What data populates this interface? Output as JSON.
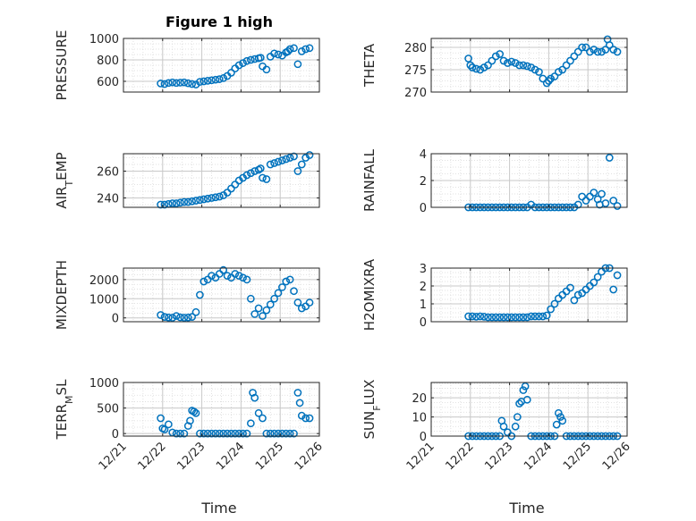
{
  "figure": {
    "title": "Figure 1 high",
    "xlabel": "Time"
  },
  "colors": {
    "marker": "#0072bd",
    "axis": "#262626",
    "grid": "#d9d9d9",
    "background": "#ffffff"
  },
  "x_tick_labels": [
    "12/21",
    "12/22",
    "12/23",
    "12/24",
    "12/25",
    "12/26"
  ],
  "chart_data": [
    {
      "type": "scatter",
      "ylabel": "PRESSURE",
      "ylim": [
        500,
        1000
      ],
      "yticks": [
        600,
        800,
        1000
      ],
      "grid": "on",
      "x": [
        21.95,
        22.05,
        22.15,
        22.25,
        22.35,
        22.45,
        22.55,
        22.65,
        22.75,
        22.85,
        22.95,
        23.05,
        23.15,
        23.25,
        23.35,
        23.45,
        23.55,
        23.65,
        23.75,
        23.85,
        23.95,
        24.05,
        24.15,
        24.25,
        24.35,
        24.45,
        24.5,
        24.55,
        24.65,
        24.75,
        24.85,
        24.95,
        25.05,
        25.15,
        25.2,
        25.25,
        25.35,
        25.45,
        25.55,
        25.65,
        25.75
      ],
      "y": [
        580,
        575,
        585,
        590,
        585,
        588,
        590,
        582,
        575,
        570,
        595,
        600,
        605,
        610,
        615,
        620,
        630,
        650,
        680,
        720,
        750,
        770,
        790,
        800,
        808,
        815,
        820,
        740,
        710,
        830,
        860,
        850,
        840,
        870,
        880,
        900,
        910,
        760,
        880,
        900,
        910
      ]
    },
    {
      "type": "scatter",
      "ylabel": "THETA",
      "ylim": [
        270,
        282
      ],
      "yticks": [
        270,
        275,
        280
      ],
      "grid": "on",
      "x": [
        21.95,
        22.0,
        22.05,
        22.15,
        22.25,
        22.35,
        22.45,
        22.55,
        22.65,
        22.75,
        22.85,
        22.95,
        23.05,
        23.15,
        23.25,
        23.35,
        23.45,
        23.55,
        23.65,
        23.75,
        23.85,
        23.95,
        24.0,
        24.05,
        24.15,
        24.25,
        24.35,
        24.45,
        24.55,
        24.65,
        24.75,
        24.85,
        24.95,
        25.05,
        25.15,
        25.25,
        25.35,
        25.45,
        25.5,
        25.55,
        25.65,
        25.75
      ],
      "y": [
        277.5,
        276,
        275.5,
        275.2,
        275,
        275.5,
        276,
        277,
        278,
        278.5,
        277,
        276.5,
        276.8,
        276.5,
        276,
        276,
        275.8,
        275.5,
        275,
        274.5,
        273,
        272,
        272.5,
        273,
        273.5,
        274.5,
        275,
        276,
        277,
        278,
        279,
        280,
        280,
        279,
        279.5,
        279,
        279,
        279.5,
        281.8,
        280.5,
        279.5,
        279
      ]
    },
    {
      "type": "scatter",
      "ylabel": "AIR_TEMP",
      "ylim": [
        233,
        273
      ],
      "yticks": [
        240,
        260
      ],
      "grid": "on",
      "x": [
        21.95,
        22.05,
        22.15,
        22.25,
        22.35,
        22.45,
        22.55,
        22.65,
        22.75,
        22.85,
        22.95,
        23.05,
        23.15,
        23.25,
        23.35,
        23.45,
        23.55,
        23.65,
        23.75,
        23.85,
        23.95,
        24.05,
        24.15,
        24.25,
        24.35,
        24.45,
        24.5,
        24.55,
        24.65,
        24.75,
        24.85,
        24.95,
        25.05,
        25.15,
        25.25,
        25.35,
        25.45,
        25.55,
        25.65,
        25.75
      ],
      "y": [
        235,
        235,
        235.5,
        236,
        236,
        236.5,
        237,
        237,
        237.5,
        238,
        238.5,
        239,
        239.5,
        240,
        240.5,
        241,
        242,
        244,
        247,
        250,
        253,
        255,
        257,
        258.5,
        260,
        261,
        262,
        255,
        254,
        265,
        266,
        267,
        268,
        269,
        270,
        271,
        260,
        265,
        270,
        272
      ]
    },
    {
      "type": "scatter",
      "ylabel": "RAINFALL",
      "ylim": [
        0,
        4
      ],
      "yticks": [
        0,
        2,
        4
      ],
      "grid": "on",
      "x": [
        21.95,
        22.05,
        22.15,
        22.25,
        22.35,
        22.45,
        22.55,
        22.65,
        22.75,
        22.85,
        22.95,
        23.05,
        23.15,
        23.25,
        23.35,
        23.45,
        23.55,
        23.65,
        23.75,
        23.85,
        23.95,
        24.05,
        24.15,
        24.25,
        24.35,
        24.45,
        24.55,
        24.65,
        24.75,
        24.85,
        24.95,
        25.05,
        25.15,
        25.25,
        25.3,
        25.35,
        25.45,
        25.55,
        25.65,
        25.75
      ],
      "y": [
        0,
        0,
        0,
        0,
        0,
        0,
        0,
        0,
        0,
        0,
        0,
        0,
        0,
        0,
        0,
        0,
        0.2,
        0,
        0,
        0,
        0,
        0,
        0,
        0,
        0,
        0,
        0,
        0,
        0.2,
        0.8,
        0.5,
        0.8,
        1.1,
        0.6,
        0.2,
        1.0,
        0.3,
        3.7,
        0.5,
        0.1
      ]
    },
    {
      "type": "scatter",
      "ylabel": "MIXDEPTH",
      "ylim": [
        -200,
        2600
      ],
      "yticks": [
        0,
        1000,
        2000
      ],
      "grid": "on",
      "x": [
        21.95,
        22.05,
        22.15,
        22.25,
        22.35,
        22.45,
        22.55,
        22.65,
        22.75,
        22.85,
        22.95,
        23.05,
        23.15,
        23.25,
        23.35,
        23.45,
        23.55,
        23.65,
        23.75,
        23.85,
        23.95,
        24.05,
        24.15,
        24.25,
        24.35,
        24.45,
        24.55,
        24.65,
        24.75,
        24.85,
        24.95,
        25.05,
        25.15,
        25.25,
        25.35,
        25.45,
        25.55,
        25.65,
        25.75
      ],
      "y": [
        150,
        50,
        20,
        10,
        100,
        30,
        10,
        20,
        50,
        300,
        1200,
        1900,
        2000,
        2200,
        2100,
        2300,
        2500,
        2200,
        2100,
        2300,
        2200,
        2100,
        2000,
        1000,
        200,
        500,
        100,
        400,
        700,
        1000,
        1300,
        1600,
        1900,
        2000,
        1400,
        800,
        500,
        600,
        800
      ]
    },
    {
      "type": "scatter",
      "ylabel": "H2OMIXRA",
      "ylim": [
        0,
        3
      ],
      "yticks": [
        0,
        1,
        2,
        3
      ],
      "grid": "on",
      "x": [
        21.95,
        22.05,
        22.15,
        22.25,
        22.35,
        22.45,
        22.55,
        22.65,
        22.75,
        22.85,
        22.95,
        23.05,
        23.15,
        23.25,
        23.35,
        23.45,
        23.55,
        23.65,
        23.75,
        23.85,
        23.95,
        24.05,
        24.15,
        24.25,
        24.35,
        24.45,
        24.55,
        24.65,
        24.75,
        24.85,
        24.95,
        25.05,
        25.15,
        25.25,
        25.35,
        25.45,
        25.55,
        25.65,
        25.75
      ],
      "y": [
        0.3,
        0.3,
        0.28,
        0.3,
        0.28,
        0.25,
        0.25,
        0.25,
        0.25,
        0.25,
        0.25,
        0.25,
        0.25,
        0.25,
        0.25,
        0.25,
        0.3,
        0.3,
        0.3,
        0.3,
        0.35,
        0.7,
        1.0,
        1.3,
        1.5,
        1.7,
        1.9,
        1.2,
        1.5,
        1.6,
        1.8,
        2.0,
        2.2,
        2.5,
        2.8,
        3.0,
        3.0,
        1.8,
        2.6
      ]
    },
    {
      "type": "scatter",
      "ylabel": "TERR_MSL",
      "ylim": [
        -50,
        1000
      ],
      "yticks": [
        0,
        500,
        1000
      ],
      "grid": "on",
      "x": [
        21.95,
        22.0,
        22.05,
        22.15,
        22.25,
        22.35,
        22.45,
        22.55,
        22.65,
        22.7,
        22.75,
        22.8,
        22.85,
        22.95,
        23.05,
        23.15,
        23.25,
        23.35,
        23.45,
        23.55,
        23.65,
        23.75,
        23.85,
        23.95,
        24.05,
        24.15,
        24.25,
        24.3,
        24.35,
        24.45,
        24.55,
        24.65,
        24.75,
        24.85,
        24.95,
        25.05,
        25.15,
        25.25,
        25.35,
        25.45,
        25.5,
        25.55,
        25.65,
        25.75
      ],
      "y": [
        300,
        100,
        80,
        180,
        20,
        0,
        0,
        0,
        150,
        250,
        450,
        430,
        400,
        0,
        0,
        0,
        0,
        0,
        0,
        0,
        0,
        0,
        0,
        0,
        0,
        0,
        200,
        800,
        700,
        400,
        300,
        0,
        0,
        0,
        0,
        0,
        0,
        0,
        0,
        800,
        600,
        350,
        300,
        300
      ]
    },
    {
      "type": "scatter",
      "ylabel": "SUN_FLUX",
      "ylim": [
        0,
        28
      ],
      "yticks": [
        0,
        10,
        20
      ],
      "grid": "on",
      "x": [
        21.95,
        22.05,
        22.15,
        22.25,
        22.35,
        22.45,
        22.55,
        22.65,
        22.75,
        22.8,
        22.85,
        22.95,
        23.05,
        23.15,
        23.2,
        23.25,
        23.3,
        23.35,
        23.4,
        23.45,
        23.55,
        23.65,
        23.75,
        23.85,
        23.95,
        24.05,
        24.15,
        24.2,
        24.25,
        24.3,
        24.35,
        24.45,
        24.55,
        24.65,
        24.75,
        24.85,
        24.95,
        25.05,
        25.15,
        25.25,
        25.35,
        25.45,
        25.55,
        25.65,
        25.75
      ],
      "y": [
        0,
        0,
        0,
        0,
        0,
        0,
        0,
        0,
        0,
        8,
        5,
        2,
        0,
        5,
        10,
        17,
        18,
        24,
        26,
        19,
        0,
        0,
        0,
        0,
        0,
        0,
        0,
        6,
        12,
        10,
        8,
        0,
        0,
        0,
        0,
        0,
        0,
        0,
        0,
        0,
        0,
        0,
        0,
        0,
        0
      ]
    }
  ]
}
